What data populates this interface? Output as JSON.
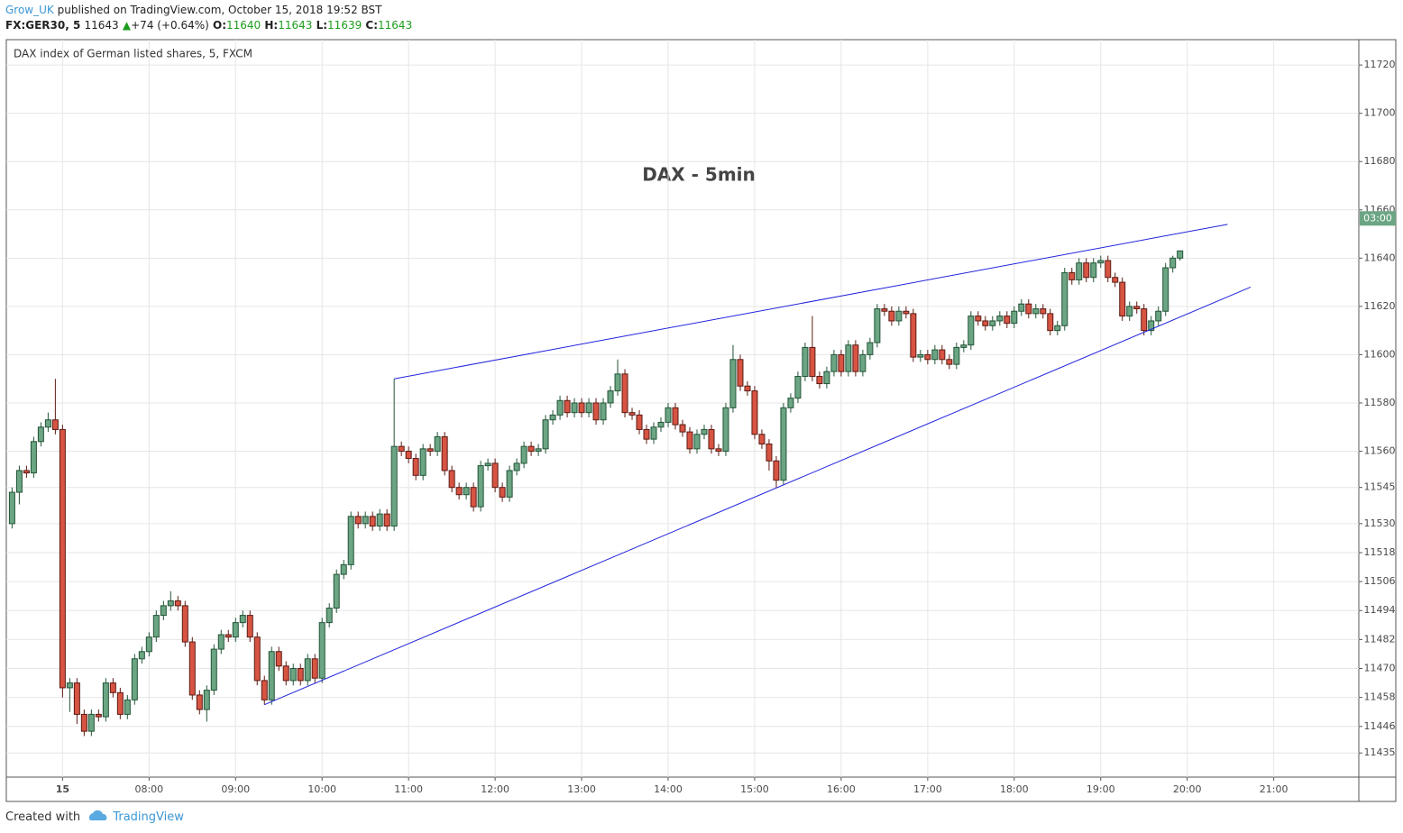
{
  "header": {
    "author": "Grow_UK",
    "published": "published on TradingView.com, October 15, 2018 19:52 BST",
    "symbol": "FX:GER30, 5",
    "last": "11643",
    "change": "+74 (+0.64%)",
    "o_label": "O:",
    "o": "11640",
    "h_label": "H:",
    "h": "11643",
    "l_label": "L:",
    "l": "11639",
    "c_label": "C:",
    "c": "11643"
  },
  "chart_data": {
    "type": "candlestick",
    "legend": "DAX index of German listed shares, 5, FXCM",
    "title": "DAX - 5min",
    "price_label": "03:00",
    "up_color": "#6ba583",
    "down_color": "#d75442",
    "trendline_color": "#2222dd",
    "grid": true,
    "xlim": [
      381,
      1319
    ],
    "ylim": [
      11425,
      11730.5
    ],
    "xticks": [
      {
        "value": 420,
        "label": "15"
      },
      {
        "value": 480,
        "label": "08:00"
      },
      {
        "value": 540,
        "label": "09:00"
      },
      {
        "value": 600,
        "label": "10:00"
      },
      {
        "value": 660,
        "label": "11:00"
      },
      {
        "value": 720,
        "label": "12:00"
      },
      {
        "value": 780,
        "label": "13:00"
      },
      {
        "value": 840,
        "label": "14:00"
      },
      {
        "value": 900,
        "label": "15:00"
      },
      {
        "value": 960,
        "label": "16:00"
      },
      {
        "value": 1020,
        "label": "17:00"
      },
      {
        "value": 1080,
        "label": "18:00"
      },
      {
        "value": 1140,
        "label": "19:00"
      },
      {
        "value": 1200,
        "label": "20:00"
      },
      {
        "value": 1260,
        "label": "21:00"
      }
    ],
    "yticks": [
      11720,
      11700,
      11680,
      11660,
      11640,
      11620,
      11600,
      11580,
      11560,
      11545,
      11530,
      11518,
      11506,
      11494,
      11482,
      11470,
      11458,
      11446,
      11435
    ],
    "x": [
      385,
      390,
      395,
      400,
      405,
      410,
      415,
      420,
      425,
      430,
      435,
      440,
      445,
      450,
      455,
      460,
      465,
      470,
      475,
      480,
      485,
      490,
      495,
      500,
      505,
      510,
      515,
      520,
      525,
      530,
      535,
      540,
      545,
      550,
      555,
      560,
      565,
      570,
      575,
      580,
      585,
      590,
      595,
      600,
      605,
      610,
      615,
      620,
      625,
      630,
      635,
      640,
      645,
      650,
      655,
      660,
      665,
      670,
      675,
      680,
      685,
      690,
      695,
      700,
      705,
      710,
      715,
      720,
      725,
      730,
      735,
      740,
      745,
      750,
      755,
      760,
      765,
      770,
      775,
      780,
      785,
      790,
      795,
      800,
      805,
      810,
      815,
      820,
      825,
      830,
      835,
      840,
      845,
      850,
      855,
      860,
      865,
      870,
      875,
      880,
      885,
      890,
      895,
      900,
      905,
      910,
      915,
      920,
      925,
      930,
      935,
      940,
      945,
      950,
      955,
      960,
      965,
      970,
      975,
      980,
      985,
      990,
      995,
      1000,
      1005,
      1010,
      1015,
      1020,
      1025,
      1030,
      1035,
      1040,
      1045,
      1050,
      1055,
      1060,
      1065,
      1070,
      1075,
      1080,
      1085,
      1090,
      1095,
      1100,
      1105,
      1110,
      1115,
      1120,
      1125,
      1130,
      1135,
      1140,
      1145,
      1150,
      1155,
      1160,
      1165,
      1170,
      1175,
      1180,
      1185,
      1190,
      1195
    ],
    "candles": [
      [
        11530,
        11545,
        11528,
        11543
      ],
      [
        11543,
        11554,
        11538,
        11552
      ],
      [
        11552,
        11554,
        11549,
        11551
      ],
      [
        11551,
        11566,
        11549,
        11564
      ],
      [
        11564,
        11572,
        11562,
        11570
      ],
      [
        11570,
        11576,
        11568,
        11573
      ],
      [
        11573,
        11590,
        11567,
        11569
      ],
      [
        11569,
        11571,
        11458,
        11462
      ],
      [
        11462,
        11466,
        11452,
        11464
      ],
      [
        11464,
        11466,
        11447,
        11451
      ],
      [
        11451,
        11453,
        11442,
        11444
      ],
      [
        11444,
        11453,
        11442,
        11451
      ],
      [
        11451,
        11453,
        11448,
        11450
      ],
      [
        11450,
        11466,
        11448,
        11464
      ],
      [
        11464,
        11466,
        11458,
        11460
      ],
      [
        11460,
        11462,
        11449,
        11451
      ],
      [
        11451,
        11459,
        11449,
        11457
      ],
      [
        11457,
        11476,
        11455,
        11474
      ],
      [
        11474,
        11479,
        11472,
        11477
      ],
      [
        11477,
        11485,
        11475,
        11483
      ],
      [
        11483,
        11494,
        11481,
        11492
      ],
      [
        11492,
        11498,
        11490,
        11496
      ],
      [
        11496,
        11502,
        11494,
        11498
      ],
      [
        11498,
        11500,
        11494,
        11496
      ],
      [
        11496,
        11498,
        11479,
        11481
      ],
      [
        11481,
        11483,
        11457,
        11459
      ],
      [
        11459,
        11461,
        11451,
        11453
      ],
      [
        11453,
        11463,
        11448,
        11461
      ],
      [
        11461,
        11480,
        11459,
        11478
      ],
      [
        11478,
        11486,
        11476,
        11484
      ],
      [
        11484,
        11486,
        11481,
        11483
      ],
      [
        11483,
        11491,
        11481,
        11489
      ],
      [
        11489,
        11494,
        11487,
        11492
      ],
      [
        11492,
        11494,
        11481,
        11483
      ],
      [
        11483,
        11485,
        11463,
        11465
      ],
      [
        11465,
        11467,
        11455,
        11457
      ],
      [
        11457,
        11479,
        11455,
        11477
      ],
      [
        11477,
        11479,
        11469,
        11471
      ],
      [
        11471,
        11473,
        11463,
        11465
      ],
      [
        11465,
        11472,
        11463,
        11470
      ],
      [
        11470,
        11472,
        11463,
        11465
      ],
      [
        11465,
        11476,
        11463,
        11474
      ],
      [
        11474,
        11476,
        11464,
        11466
      ],
      [
        11466,
        11491,
        11464,
        11489
      ],
      [
        11489,
        11497,
        11487,
        11495
      ],
      [
        11495,
        11511,
        11493,
        11509
      ],
      [
        11509,
        11515,
        11507,
        11513
      ],
      [
        11513,
        11535,
        11511,
        11533
      ],
      [
        11533,
        11535,
        11528,
        11530
      ],
      [
        11530,
        11535,
        11528,
        11533
      ],
      [
        11533,
        11535,
        11527,
        11529
      ],
      [
        11529,
        11536,
        11527,
        11534
      ],
      [
        11534,
        11536,
        11527,
        11529
      ],
      [
        11529,
        11590,
        11527,
        11562
      ],
      [
        11562,
        11564,
        11558,
        11560
      ],
      [
        11560,
        11562,
        11555,
        11557
      ],
      [
        11557,
        11559,
        11548,
        11550
      ],
      [
        11550,
        11563,
        11548,
        11561
      ],
      [
        11561,
        11563,
        11558,
        11560
      ],
      [
        11560,
        11568,
        11558,
        11566
      ],
      [
        11566,
        11568,
        11550,
        11552
      ],
      [
        11552,
        11554,
        11543,
        11545
      ],
      [
        11545,
        11547,
        11540,
        11542
      ],
      [
        11542,
        11547,
        11540,
        11545
      ],
      [
        11545,
        11547,
        11535,
        11537
      ],
      [
        11537,
        11556,
        11535,
        11554
      ],
      [
        11554,
        11557,
        11552,
        11555
      ],
      [
        11555,
        11557,
        11543,
        11545
      ],
      [
        11545,
        11547,
        11539,
        11541
      ],
      [
        11541,
        11554,
        11539,
        11552
      ],
      [
        11552,
        11557,
        11550,
        11555
      ],
      [
        11555,
        11564,
        11553,
        11562
      ],
      [
        11562,
        11564,
        11558,
        11560
      ],
      [
        11560,
        11563,
        11558,
        11561
      ],
      [
        11561,
        11575,
        11559,
        11573
      ],
      [
        11573,
        11577,
        11571,
        11575
      ],
      [
        11575,
        11583,
        11573,
        11581
      ],
      [
        11581,
        11583,
        11574,
        11576
      ],
      [
        11576,
        11582,
        11574,
        11580
      ],
      [
        11580,
        11582,
        11574,
        11576
      ],
      [
        11576,
        11582,
        11574,
        11580
      ],
      [
        11580,
        11582,
        11571,
        11573
      ],
      [
        11573,
        11582,
        11571,
        11580
      ],
      [
        11580,
        11587,
        11578,
        11585
      ],
      [
        11585,
        11598,
        11583,
        11592
      ],
      [
        11592,
        11594,
        11574,
        11576
      ],
      [
        11576,
        11578,
        11573,
        11575
      ],
      [
        11575,
        11577,
        11567,
        11569
      ],
      [
        11569,
        11571,
        11563,
        11565
      ],
      [
        11565,
        11572,
        11563,
        11570
      ],
      [
        11570,
        11574,
        11568,
        11572
      ],
      [
        11572,
        11580,
        11570,
        11578
      ],
      [
        11578,
        11580,
        11569,
        11571
      ],
      [
        11571,
        11573,
        11566,
        11568
      ],
      [
        11568,
        11570,
        11559,
        11561
      ],
      [
        11561,
        11569,
        11559,
        11567
      ],
      [
        11567,
        11571,
        11565,
        11569
      ],
      [
        11569,
        11571,
        11559,
        11561
      ],
      [
        11561,
        11563,
        11558,
        11560
      ],
      [
        11560,
        11580,
        11558,
        11578
      ],
      [
        11578,
        11604,
        11576,
        11598
      ],
      [
        11598,
        11600,
        11585,
        11587
      ],
      [
        11587,
        11589,
        11583,
        11585
      ],
      [
        11585,
        11587,
        11565,
        11567
      ],
      [
        11567,
        11569,
        11561,
        11563
      ],
      [
        11563,
        11565,
        11552,
        11556
      ],
      [
        11556,
        11558,
        11545,
        11548
      ],
      [
        11548,
        11580,
        11546,
        11578
      ],
      [
        11578,
        11584,
        11576,
        11582
      ],
      [
        11582,
        11593,
        11580,
        11591
      ],
      [
        11591,
        11605,
        11589,
        11603
      ],
      [
        11603,
        11616,
        11589,
        11591
      ],
      [
        11591,
        11593,
        11586,
        11588
      ],
      [
        11588,
        11595,
        11586,
        11593
      ],
      [
        11593,
        11602,
        11591,
        11600
      ],
      [
        11600,
        11602,
        11591,
        11593
      ],
      [
        11593,
        11606,
        11591,
        11604
      ],
      [
        11604,
        11606,
        11591,
        11593
      ],
      [
        11593,
        11602,
        11591,
        11600
      ],
      [
        11600,
        11607,
        11598,
        11605
      ],
      [
        11605,
        11621,
        11603,
        11619
      ],
      [
        11619,
        11621,
        11616,
        11618
      ],
      [
        11618,
        11620,
        11612,
        11614
      ],
      [
        11614,
        11620,
        11612,
        11618
      ],
      [
        11618,
        11620,
        11615,
        11617
      ],
      [
        11617,
        11619,
        11597,
        11599
      ],
      [
        11599,
        11602,
        11597,
        11600
      ],
      [
        11600,
        11602,
        11596,
        11598
      ],
      [
        11598,
        11604,
        11596,
        11602
      ],
      [
        11602,
        11604,
        11596,
        11598
      ],
      [
        11598,
        11600,
        11594,
        11596
      ],
      [
        11596,
        11605,
        11594,
        11603
      ],
      [
        11603,
        11606,
        11601,
        11604
      ],
      [
        11604,
        11618,
        11602,
        11616
      ],
      [
        11616,
        11618,
        11612,
        11614
      ],
      [
        11614,
        11616,
        11610,
        11612
      ],
      [
        11612,
        11616,
        11610,
        11614
      ],
      [
        11614,
        11618,
        11612,
        11616
      ],
      [
        11616,
        11618,
        11611,
        11613
      ],
      [
        11613,
        11620,
        11611,
        11618
      ],
      [
        11618,
        11623,
        11616,
        11621
      ],
      [
        11621,
        11623,
        11615,
        11617
      ],
      [
        11617,
        11621,
        11615,
        11619
      ],
      [
        11619,
        11621,
        11615,
        11617
      ],
      [
        11617,
        11619,
        11608,
        11610
      ],
      [
        11610,
        11614,
        11608,
        11612
      ],
      [
        11612,
        11636,
        11610,
        11634
      ],
      [
        11634,
        11636,
        11629,
        11631
      ],
      [
        11631,
        11640,
        11629,
        11638
      ],
      [
        11638,
        11640,
        11630,
        11632
      ],
      [
        11632,
        11640,
        11630,
        11638
      ],
      [
        11638,
        11641,
        11636,
        11639
      ],
      [
        11639,
        11641,
        11630,
        11632
      ],
      [
        11632,
        11634,
        11628,
        11630
      ],
      [
        11630,
        11632,
        11614,
        11616
      ],
      [
        11616,
        11622,
        11614,
        11620
      ],
      [
        11620,
        11622,
        11617,
        11619
      ],
      [
        11619,
        11621,
        11608,
        11610
      ],
      [
        11610,
        11616,
        11608,
        11614
      ],
      [
        11614,
        11620,
        11612,
        11618
      ],
      [
        11618,
        11638,
        11616,
        11636
      ],
      [
        11636,
        11641,
        11634,
        11640
      ],
      [
        11640,
        11643,
        11639,
        11643
      ]
    ],
    "trendlines": [
      {
        "x": [
          650,
          1228
        ],
        "y": [
          11590,
          11654
        ]
      },
      {
        "x": [
          560,
          1244
        ],
        "y": [
          11455,
          11628
        ]
      }
    ]
  },
  "footer": {
    "created": "Created with",
    "brand": "TradingView"
  }
}
